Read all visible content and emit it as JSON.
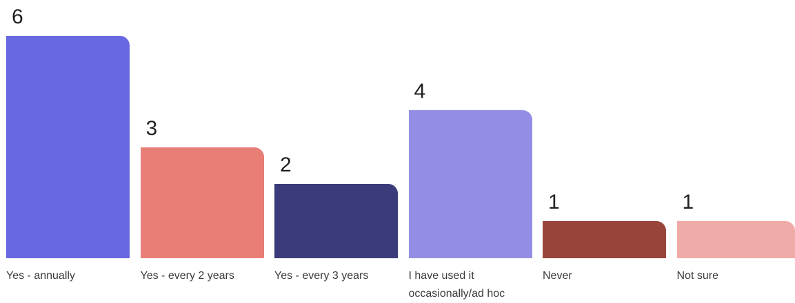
{
  "chart_data": {
    "type": "bar",
    "title": "",
    "xlabel": "",
    "ylabel": "",
    "ylim": [
      0,
      6
    ],
    "grid": false,
    "categories": [
      "Yes - annually",
      "Yes - every 2 years",
      "Yes - every 3 years",
      "I have used it occasionally/ad hoc",
      "Never",
      "Not sure"
    ],
    "values": [
      6,
      3,
      2,
      4,
      1,
      1
    ],
    "colors": [
      "#6868e0",
      "#e87e76",
      "#3b3b7b",
      "#938ee3",
      "#98443b",
      "#efaba7"
    ]
  }
}
